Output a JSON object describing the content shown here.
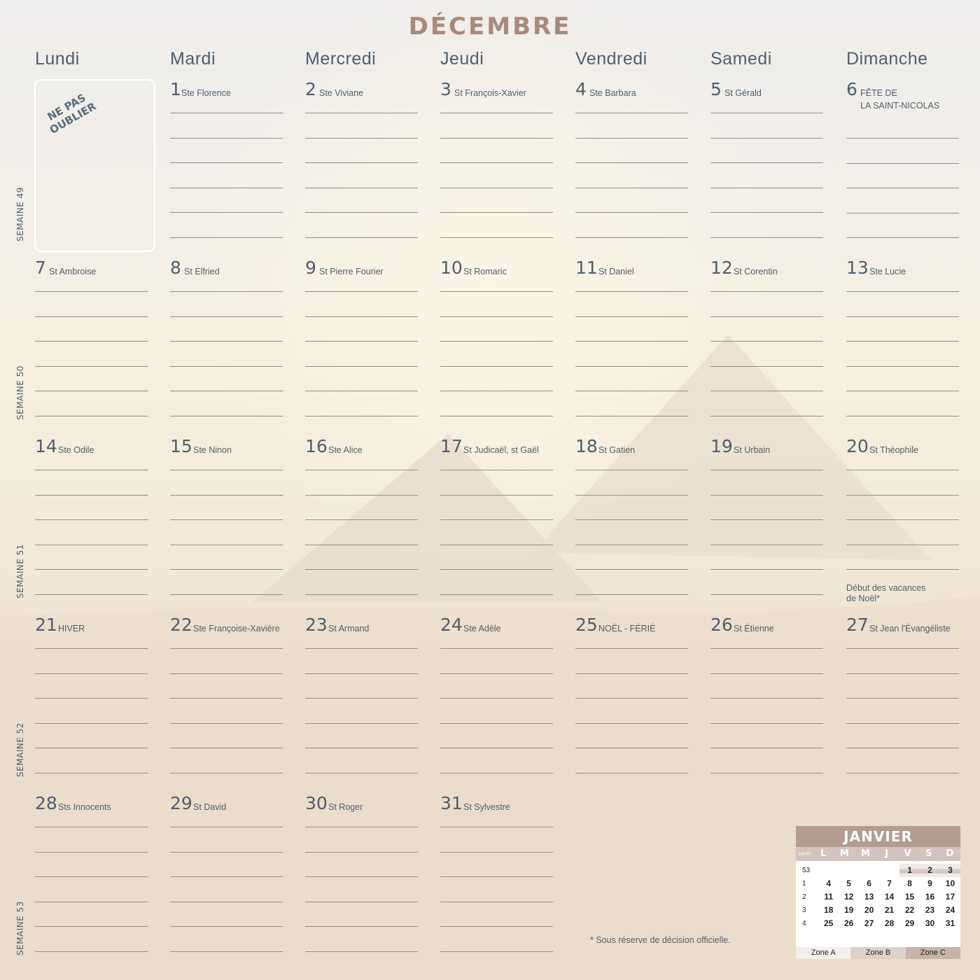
{
  "month": "DÉCEMBRE",
  "day_names": [
    "Lundi",
    "Mardi",
    "Mercredi",
    "Jeudi",
    "Vendredi",
    "Samedi",
    "Dimanche"
  ],
  "memo": "NE PAS\nOUBLIER",
  "weeks": [
    {
      "label": "SEMAINE 49",
      "days": [
        null,
        {
          "num": "1",
          "saint": "Ste Florence"
        },
        {
          "num": "2",
          "saint": "Ste Viviane"
        },
        {
          "num": "3",
          "saint": "St François-Xavier"
        },
        {
          "num": "4",
          "saint": "Ste Barbara"
        },
        {
          "num": "5",
          "saint": "St Gérald"
        },
        {
          "num": "6",
          "saint": "FÊTE DE\nLA SAINT-NICOLAS"
        }
      ]
    },
    {
      "label": "SEMAINE 50",
      "days": [
        {
          "num": "7",
          "saint": "St Ambroise"
        },
        {
          "num": "8",
          "saint": "St Elfried"
        },
        {
          "num": "9",
          "saint": "St Pierre Fourier"
        },
        {
          "num": "10",
          "saint": "St Romaric"
        },
        {
          "num": "11",
          "saint": "St Daniel"
        },
        {
          "num": "12",
          "saint": "St Corentin"
        },
        {
          "num": "13",
          "saint": "Ste Lucie"
        }
      ]
    },
    {
      "label": "SEMAINE 51",
      "days": [
        {
          "num": "14",
          "saint": "Ste Odile"
        },
        {
          "num": "15",
          "saint": "Ste Ninon"
        },
        {
          "num": "16",
          "saint": "Ste Alice"
        },
        {
          "num": "17",
          "saint": "St Judicaël, st Gaël"
        },
        {
          "num": "18",
          "saint": "St Gatien"
        },
        {
          "num": "19",
          "saint": "St Urbain"
        },
        {
          "num": "20",
          "saint": "St Théophile",
          "note": "Début des vacances\nde Noël*"
        }
      ]
    },
    {
      "label": "SEMAINE 52",
      "days": [
        {
          "num": "21",
          "saint": "HIVER"
        },
        {
          "num": "22",
          "saint": "Ste Françoise-Xavière"
        },
        {
          "num": "23",
          "saint": "St Armand"
        },
        {
          "num": "24",
          "saint": "Ste Adèle"
        },
        {
          "num": "25",
          "saint": "NOËL - FÉRIÉ"
        },
        {
          "num": "26",
          "saint": "St Étienne"
        },
        {
          "num": "27",
          "saint": "St Jean l'Évangéliste"
        }
      ]
    },
    {
      "label": "SEMAINE 53",
      "days": [
        {
          "num": "28",
          "saint": "Sts Innocents"
        },
        {
          "num": "29",
          "saint": "St David"
        },
        {
          "num": "30",
          "saint": "St Roger"
        },
        {
          "num": "31",
          "saint": "St Sylvestre"
        },
        null,
        null,
        null
      ]
    }
  ],
  "footnote": "* Sous réserve de décision officielle.",
  "mini_calendar": {
    "title": "JANVIER",
    "sem_label": "sem",
    "dow": [
      "L",
      "M",
      "M",
      "J",
      "V",
      "S",
      "D"
    ],
    "rows": [
      {
        "sem": "53",
        "days": [
          "",
          "",
          "",
          "",
          "1",
          "2",
          "3"
        ]
      },
      {
        "sem": "1",
        "days": [
          "4",
          "5",
          "6",
          "7",
          "8",
          "9",
          "10"
        ]
      },
      {
        "sem": "2",
        "days": [
          "11",
          "12",
          "13",
          "14",
          "15",
          "16",
          "17"
        ]
      },
      {
        "sem": "3",
        "days": [
          "18",
          "19",
          "20",
          "21",
          "22",
          "23",
          "24"
        ]
      },
      {
        "sem": "4",
        "days": [
          "25",
          "26",
          "27",
          "28",
          "29",
          "30",
          "31"
        ]
      }
    ],
    "highlighted_days": [
      "1",
      "2",
      "3"
    ],
    "zones": [
      {
        "label": "Zone A",
        "color": "#f2efed"
      },
      {
        "label": "Zone B",
        "color": "#ddd1cb"
      },
      {
        "label": "Zone C",
        "color": "#c6b3aa"
      }
    ]
  },
  "colors": {
    "title": "#a88a7b",
    "text": "#4f5e6c",
    "mini_header": "#b59c91"
  }
}
